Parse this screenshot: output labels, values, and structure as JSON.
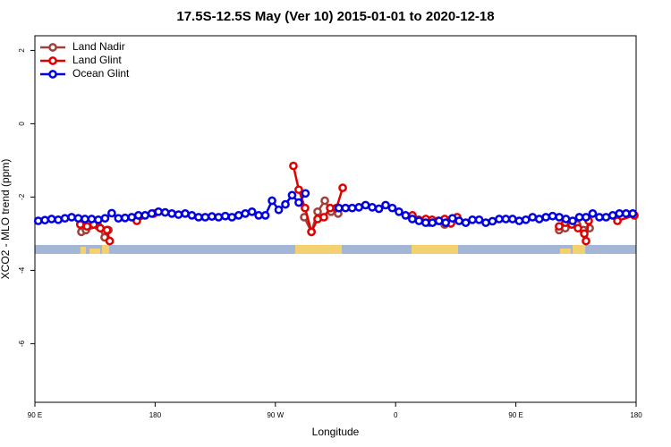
{
  "chart_data": {
    "type": "line",
    "title": "17.5S-12.5S May (Ver 10)   2015-01-01 to 2020-12-18",
    "x_label": "Longitude",
    "y_label": "XCO2 - MLO trend (ppm)",
    "xlim": [
      90,
      540
    ],
    "ylim": [
      -7.6,
      2.4
    ],
    "xticks": [
      {
        "value": 90,
        "label": "90 E"
      },
      180,
      {
        "value": 270,
        "label": "90 W"
      },
      {
        "value": 360,
        "label": "0"
      },
      {
        "value": 450,
        "label": "90 E"
      },
      {
        "value": 540,
        "label": "180"
      }
    ],
    "yticks": [
      -6,
      -4,
      -2,
      0,
      2
    ],
    "legend": "top-left",
    "series": [
      {
        "name": "Land Nadir",
        "color": "#a0403a",
        "x": [
          124.8,
          128.2,
          137.5,
          142.2,
          145,
          null,
          291.6,
          297,
          301.6,
          307,
          311.7,
          317,
          null,
          385.3,
          396.7,
          null,
          482.4,
          487,
          495.8,
          500.5,
          505.2
        ],
        "values": [
          -2.95,
          -2.9,
          -2.8,
          -3.1,
          -2.9,
          null,
          -2.55,
          -2.95,
          -2.4,
          -2.1,
          -2.4,
          -2.45,
          null,
          -2.7,
          -2.75,
          null,
          -2.9,
          -2.85,
          -2.75,
          -2.9,
          -2.85
        ]
      },
      {
        "name": "Land Glint",
        "color": "#e00000",
        "x": [
          124,
          129,
          134,
          139,
          144,
          146,
          null,
          166.3,
          179,
          null,
          283.5,
          287.5,
          292.2,
          297,
          301.6,
          306.3,
          311,
          315.7,
          320.4,
          null,
          372.6,
          377.3,
          382.6,
          387.3,
          392,
          396.7,
          401.4,
          406.1,
          null,
          482.4,
          487,
          491.8,
          496.5,
          501.2,
          502.5,
          504.5,
          null,
          526,
          538.7
        ],
        "values": [
          -2.75,
          -2.8,
          -2.75,
          -2.85,
          -2.9,
          -3.2,
          null,
          -2.65,
          -2.45,
          null,
          -1.15,
          -1.8,
          -2.3,
          -2.95,
          -2.6,
          -2.55,
          -2.3,
          -2.3,
          -1.75,
          null,
          -2.5,
          -2.62,
          -2.6,
          -2.62,
          -2.65,
          -2.6,
          -2.72,
          -2.55,
          null,
          -2.8,
          -2.7,
          -2.75,
          -2.85,
          -3.0,
          -3.2,
          -2.65,
          null,
          -2.65,
          -2.5
        ]
      },
      {
        "name": "Ocean Glint",
        "color": "#0000e0",
        "x": [
          92.5,
          97.5,
          102.5,
          107.5,
          112.5,
          117.5,
          122.5,
          127.5,
          132.5,
          137.5,
          142.5,
          147.5,
          152.5,
          157.5,
          162.5,
          167.5,
          172.5,
          177.5,
          182.5,
          187.5,
          192.5,
          197.5,
          202.5,
          207.5,
          212.5,
          217.5,
          222.5,
          227.5,
          232.5,
          237.5,
          242.5,
          247.5,
          252.5,
          257.5,
          262.5,
          267.5,
          272.5,
          277.5,
          282.5,
          287.5,
          292.5,
          297.5,
          302.5,
          307.5,
          312.5,
          317.5,
          322.5,
          327.5,
          332.5,
          337.5,
          342.5,
          347.5,
          352.5,
          357.5,
          362.5,
          367.5,
          372.5,
          377.5,
          382.5,
          387.5,
          392.5,
          397.5,
          402.5,
          407.5,
          412.5,
          417.5,
          422.5,
          427.5,
          432.5,
          437.5,
          442.5,
          447.5,
          452.5,
          457.5,
          462.5,
          467.5,
          472.5,
          477.5,
          482.5,
          487.5,
          492.5,
          497.5,
          502.5,
          507.5,
          512.5,
          517.5,
          522.5,
          527.5,
          532.5,
          537.5
        ],
        "values": [
          -2.65,
          -2.63,
          -2.6,
          -2.62,
          -2.58,
          -2.55,
          -2.58,
          -2.6,
          -2.6,
          -2.62,
          -2.58,
          -2.44,
          -2.58,
          -2.57,
          -2.55,
          -2.5,
          -2.5,
          -2.45,
          -2.4,
          -2.42,
          -2.45,
          -2.48,
          -2.45,
          -2.5,
          -2.55,
          -2.55,
          -2.53,
          -2.55,
          -2.52,
          -2.55,
          -2.5,
          -2.45,
          -2.4,
          -2.5,
          -2.5,
          -2.1,
          -2.35,
          -2.2,
          -1.95,
          -2.15,
          -1.9,
          null,
          null,
          null,
          null,
          -2.3,
          -2.3,
          -2.3,
          -2.28,
          -2.22,
          -2.28,
          -2.32,
          -2.22,
          -2.3,
          -2.4,
          -2.5,
          -2.6,
          -2.65,
          -2.7,
          -2.7,
          -2.65,
          -2.7,
          -2.58,
          -2.65,
          -2.7,
          -2.62,
          -2.62,
          -2.7,
          -2.66,
          -2.6,
          -2.6,
          -2.6,
          -2.65,
          -2.62,
          -2.55,
          -2.6,
          -2.55,
          -2.52,
          -2.55,
          -2.6,
          -2.65,
          -2.55,
          -2.55,
          -2.45,
          -2.55,
          -2.55,
          -2.5,
          -2.45,
          -2.45,
          -2.45
        ]
      }
    ]
  }
}
